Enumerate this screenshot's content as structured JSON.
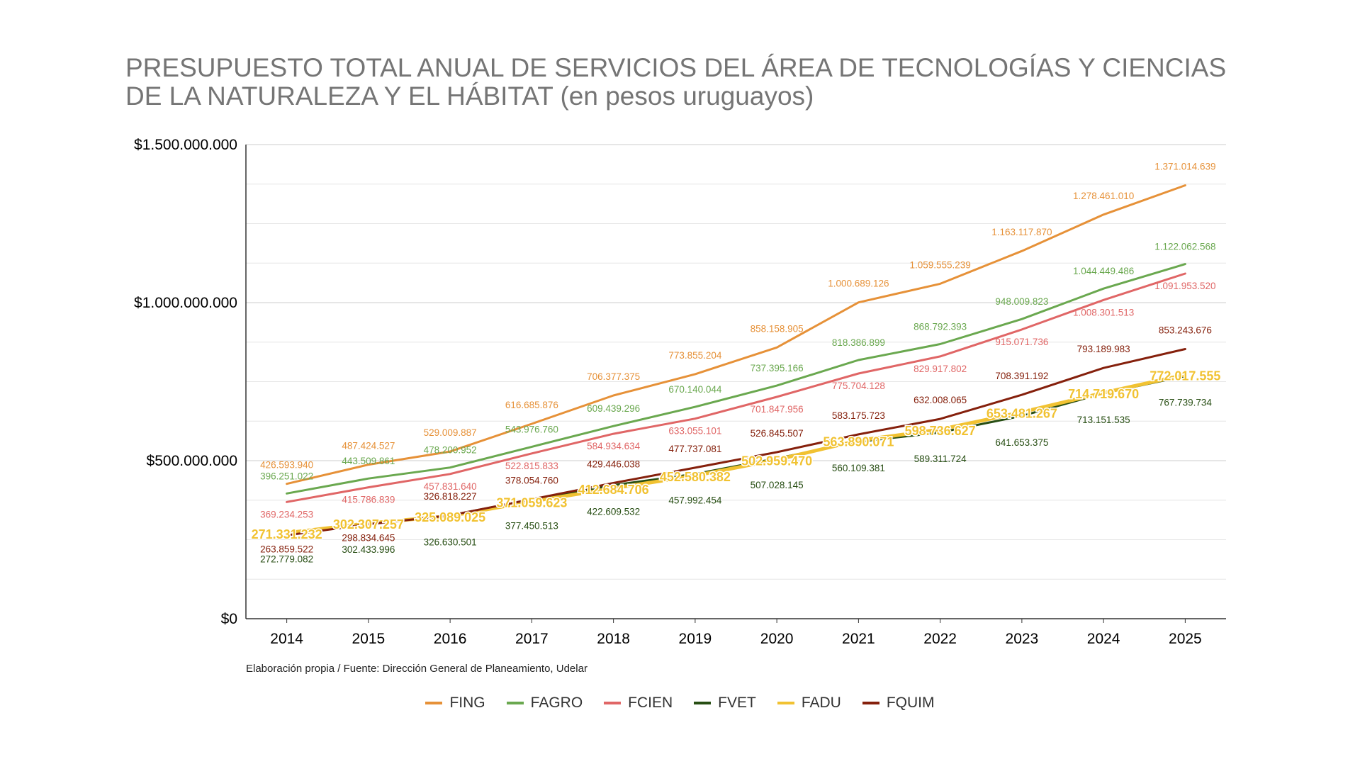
{
  "chart_data": {
    "type": "line",
    "title": "PRESUPUESTO TOTAL ANUAL DE SERVICIOS DEL ÁREA DE TECNOLOGÍAS Y CIENCIAS DE LA NATURALEZA Y EL HÁBITAT (en pesos uruguayos)",
    "xlabel": "",
    "ylabel": "",
    "categories": [
      "2014",
      "2015",
      "2016",
      "2017",
      "2018",
      "2019",
      "2020",
      "2021",
      "2022",
      "2023",
      "2024",
      "2025"
    ],
    "ylim": [
      0,
      1500000000
    ],
    "yticks": [
      0,
      500000000,
      1000000000,
      1500000000
    ],
    "ytick_labels": [
      "$0",
      "$500.000.000",
      "$1.000.000.000",
      "$1.500.000.000"
    ],
    "grid": true,
    "legend_position": "bottom",
    "series": [
      {
        "name": "FING",
        "color": "#E69138",
        "bold": false,
        "values": [
          426593940,
          487424527,
          529009887,
          616685876,
          706377375,
          773855204,
          858158905,
          1000689126,
          1059555239,
          1163117870,
          1278461010,
          1371014639
        ],
        "labels": [
          "426.593.940",
          "487.424.527",
          "529.009.887",
          "616.685.876",
          "706.377.375",
          "773.855.204",
          "858.158.905",
          "1.000.689.126",
          "1.059.555.239",
          "1.163.117.870",
          "1.278.461.010",
          "1.371.014.639"
        ]
      },
      {
        "name": "FAGRO",
        "color": "#6AA84F",
        "bold": false,
        "values": [
          396251022,
          443509861,
          478200952,
          543976760,
          609439296,
          670140044,
          737395166,
          818386899,
          868792393,
          948009823,
          1044449486,
          1122062568
        ],
        "labels": [
          "396.251.022",
          "443.509.861",
          "478.200.952",
          "543.976.760",
          "609.439.296",
          "670.140.044",
          "737.395.166",
          "818.386.899",
          "868.792.393",
          "948.009.823",
          "1.044.449.486",
          "1.122.062.568"
        ]
      },
      {
        "name": "FCIEN",
        "color": "#E06666",
        "bold": false,
        "values": [
          369234253,
          415786839,
          457831640,
          522815833,
          584934634,
          633055101,
          701847956,
          775704128,
          829917802,
          915071736,
          1008301513,
          1091953520
        ],
        "labels": [
          "369.234.253",
          "415.786.839",
          "457.831.640",
          "522.815.833",
          "584.934.634",
          "633.055.101",
          "701.847.956",
          "775.704.128",
          "829.917.802",
          "915.071.736",
          "1.008.301.513",
          "1.091.953.520"
        ]
      },
      {
        "name": "FVET",
        "color": "#274E13",
        "bold": false,
        "values": [
          272779082,
          302433996,
          326630501,
          377450513,
          422609532,
          457992454,
          507028145,
          560109381,
          589311724,
          641653375,
          713151535,
          767739734
        ],
        "labels": [
          "272.779.082",
          "302.433.996",
          "326.630.501",
          "377.450.513",
          "422.609.532",
          "457.992.454",
          "507.028.145",
          "560.109.381",
          "589.311.724",
          "641.653.375",
          "713.151.535",
          "767.739.734"
        ]
      },
      {
        "name": "FADU",
        "color": "#F1C232",
        "bold": true,
        "values": [
          271331232,
          302307257,
          325089025,
          371059623,
          412684706,
          452580382,
          502959470,
          563890071,
          598736627,
          653481267,
          714719670,
          772017555
        ],
        "labels": [
          "271.331.232",
          "302.307.257",
          "325.089.025",
          "371.059.623",
          "412.684.706",
          "452.580.382",
          "502.959.470",
          "563.890.071",
          "598.736.627",
          "653.481.267",
          "714.719.670",
          "772.017.555"
        ]
      },
      {
        "name": "FQUIM",
        "color": "#85200C",
        "bold": false,
        "values": [
          263859522,
          298834645,
          326818227,
          378054760,
          429446038,
          477737081,
          526845507,
          583175723,
          632008065,
          708391192,
          793189983,
          853243676
        ],
        "labels": [
          "263.859.522",
          "298.834.645",
          "326.818.227",
          "378.054.760",
          "429.446.038",
          "477.737.081",
          "526.845.507",
          "583.175.723",
          "632.008.065",
          "708.391.192",
          "793.189.983",
          "853.243.676"
        ]
      }
    ]
  },
  "source_note": "Elaboración propia / Fuente: Dirección General de Planeamiento, Udelar"
}
